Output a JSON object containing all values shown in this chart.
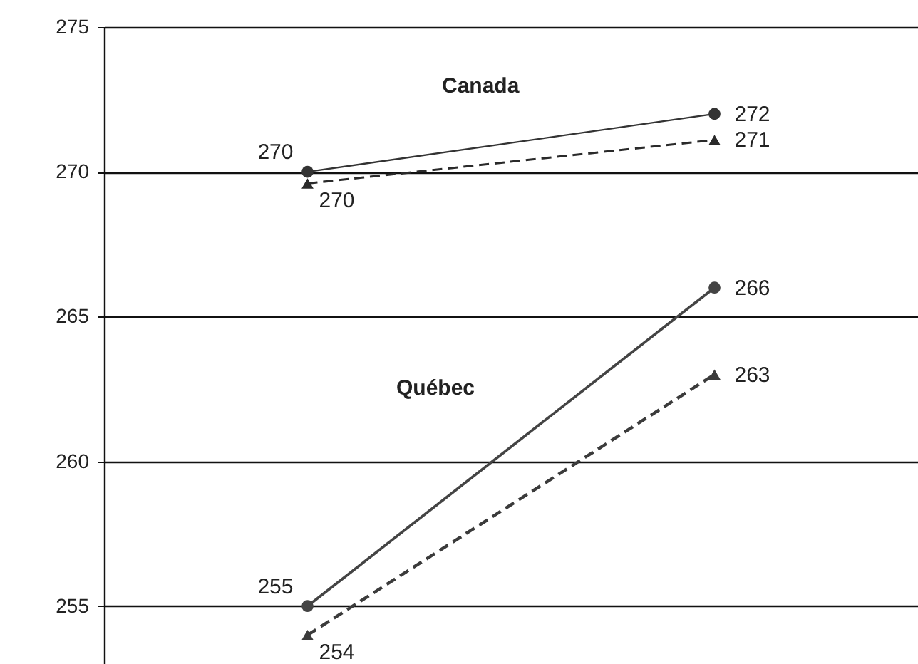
{
  "chart_data": {
    "type": "line",
    "categories": [
      null,
      null
    ],
    "series": [
      {
        "color": "#333333",
        "values": [
          270,
          272
        ],
        "marker": "circle",
        "line_style": "solid",
        "value_labels": [
          "270",
          "272"
        ]
      },
      {
        "color": "#2a2a2a",
        "values": [
          269.6,
          271.1
        ],
        "marker": "triangle",
        "line_style": "dashed",
        "value_labels": [
          "270",
          "271"
        ]
      },
      {
        "color": "#444444",
        "values": [
          255,
          266
        ],
        "marker": "circle",
        "line_style": "solid",
        "value_labels": [
          "255",
          "266"
        ]
      },
      {
        "color": "#3b3b3b",
        "values": [
          254,
          263
        ],
        "marker": "triangle",
        "line_style": "dashed",
        "value_labels": [
          "254",
          "263"
        ]
      }
    ],
    "annotations": [
      "Canada",
      "Québec"
    ],
    "ylim": [
      253,
      275
    ],
    "yticks": [
      255,
      260,
      265,
      270,
      275
    ],
    "grid": "y"
  }
}
